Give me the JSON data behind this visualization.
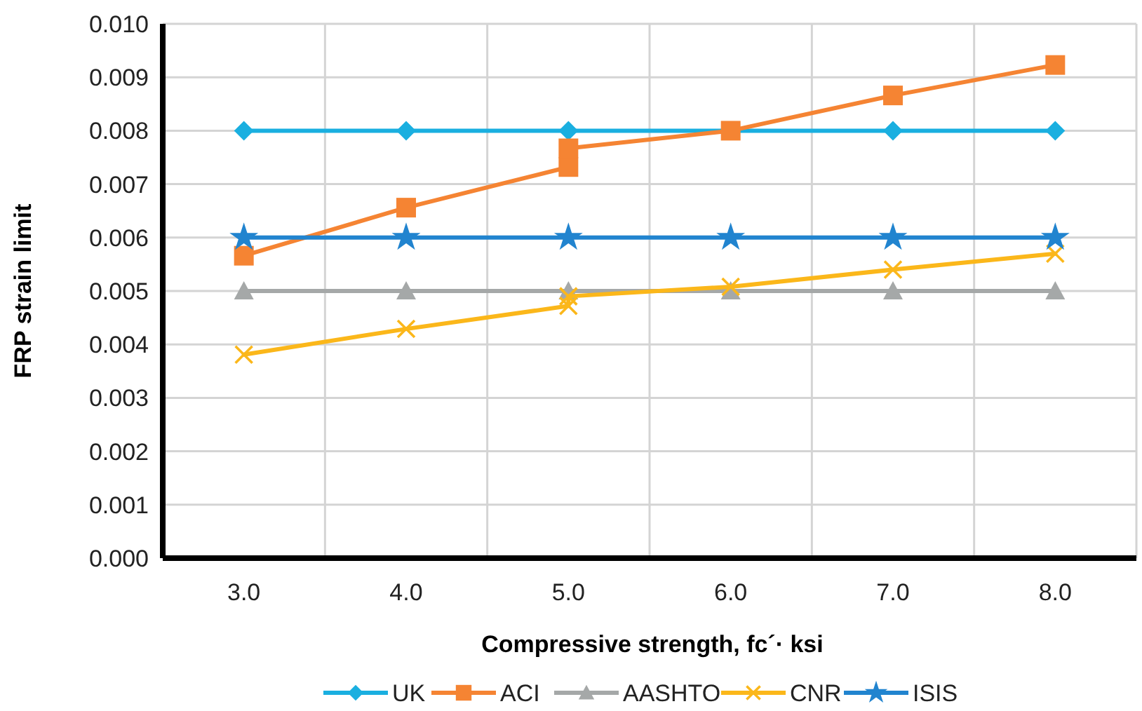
{
  "chart_data": {
    "type": "line",
    "xlabel": "Compressive strength, fc´· ksi",
    "ylabel": "FRP strain limit",
    "xlim": [
      2.5,
      8.5
    ],
    "xticks": [
      {
        "value": 2.5,
        "label": null
      },
      {
        "value": 3,
        "label": "3.0"
      },
      {
        "value": 3.5,
        "label": null
      },
      {
        "value": 4,
        "label": "4.0"
      },
      {
        "value": 4.5,
        "label": null
      },
      {
        "value": 5,
        "label": "5.0"
      },
      {
        "value": 5.5,
        "label": null
      },
      {
        "value": 6,
        "label": "6.0"
      },
      {
        "value": 6.5,
        "label": null
      },
      {
        "value": 7,
        "label": "7.0"
      },
      {
        "value": 7.5,
        "label": null
      },
      {
        "value": 8,
        "label": "8.0"
      },
      {
        "value": 8.5,
        "label": null
      }
    ],
    "ylim": [
      0,
      0.01
    ],
    "yticks": [
      {
        "value": 0,
        "label": "0.000"
      },
      {
        "value": 0.001,
        "label": "0.001"
      },
      {
        "value": 0.002,
        "label": "0.002"
      },
      {
        "value": 0.003,
        "label": "0.003"
      },
      {
        "value": 0.004,
        "label": "0.004"
      },
      {
        "value": 0.005,
        "label": "0.005"
      },
      {
        "value": 0.006,
        "label": "0.006"
      },
      {
        "value": 0.007,
        "label": "0.007"
      },
      {
        "value": 0.008,
        "label": "0.008"
      },
      {
        "value": 0.009,
        "label": "0.009"
      },
      {
        "value": 0.01,
        "label": "0.010"
      }
    ],
    "grid": true,
    "legend": "bottom",
    "series": [
      {
        "name": "UK",
        "color": "#1aafe0",
        "marker": "diamond",
        "x": [
          3,
          4,
          5,
          6,
          7,
          8
        ],
        "values": [
          0.008,
          0.008,
          0.008,
          null,
          0.008,
          0.008
        ]
      },
      {
        "name": "ACI",
        "color": "#f58433",
        "marker": "square",
        "x": [
          3,
          4,
          5,
          5,
          6,
          7,
          8
        ],
        "values": [
          0.00566,
          0.00656,
          0.00732,
          0.00767,
          0.008,
          0.00866,
          0.00923
        ]
      },
      {
        "name": "AASHTO",
        "color": "#a5a8a8",
        "marker": "triangle",
        "x": [
          3,
          4,
          5,
          6,
          7,
          8
        ],
        "values": [
          0.005,
          0.005,
          0.005,
          0.005,
          0.005,
          0.005
        ]
      },
      {
        "name": "CNR",
        "color": "#fbb71a",
        "marker": "cross",
        "x": [
          3,
          4,
          5,
          5,
          6,
          7,
          8
        ],
        "values": [
          0.00381,
          0.00429,
          0.00472,
          0.0049,
          0.00508,
          0.0054,
          0.0057
        ]
      },
      {
        "name": "ISIS",
        "color": "#2184cf",
        "marker": "star",
        "x": [
          3,
          4,
          5,
          6,
          7,
          8
        ],
        "values": [
          0.006,
          0.006,
          0.006,
          0.006,
          0.006,
          0.006
        ]
      }
    ]
  }
}
